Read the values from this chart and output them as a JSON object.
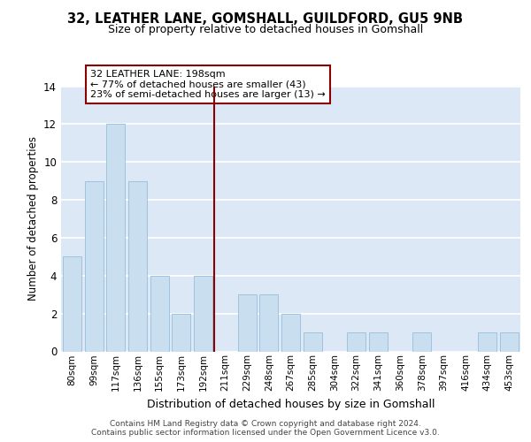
{
  "title1": "32, LEATHER LANE, GOMSHALL, GUILDFORD, GU5 9NB",
  "title2": "Size of property relative to detached houses in Gomshall",
  "xlabel": "Distribution of detached houses by size in Gomshall",
  "ylabel": "Number of detached properties",
  "bar_labels": [
    "80sqm",
    "99sqm",
    "117sqm",
    "136sqm",
    "155sqm",
    "173sqm",
    "192sqm",
    "211sqm",
    "229sqm",
    "248sqm",
    "267sqm",
    "285sqm",
    "304sqm",
    "322sqm",
    "341sqm",
    "360sqm",
    "378sqm",
    "397sqm",
    "416sqm",
    "434sqm",
    "453sqm"
  ],
  "bar_values": [
    5,
    9,
    12,
    9,
    4,
    2,
    4,
    0,
    3,
    3,
    2,
    1,
    0,
    1,
    1,
    0,
    1,
    0,
    0,
    1,
    1
  ],
  "bar_color": "#c9dff0",
  "bar_edge_color": "#a0c4de",
  "vline_color": "#8b0000",
  "annotation_title": "32 LEATHER LANE: 198sqm",
  "annotation_line1": "← 77% of detached houses are smaller (43)",
  "annotation_line2": "23% of semi-detached houses are larger (13) →",
  "annotation_box_color": "#ffffff",
  "annotation_box_edge": "#8b0000",
  "ylim": [
    0,
    14
  ],
  "yticks": [
    0,
    2,
    4,
    6,
    8,
    10,
    12,
    14
  ],
  "footer1": "Contains HM Land Registry data © Crown copyright and database right 2024.",
  "footer2": "Contains public sector information licensed under the Open Government Licence v3.0.",
  "bg_color": "#dce8f5",
  "grid_color": "#ffffff",
  "fig_bg": "#ffffff"
}
